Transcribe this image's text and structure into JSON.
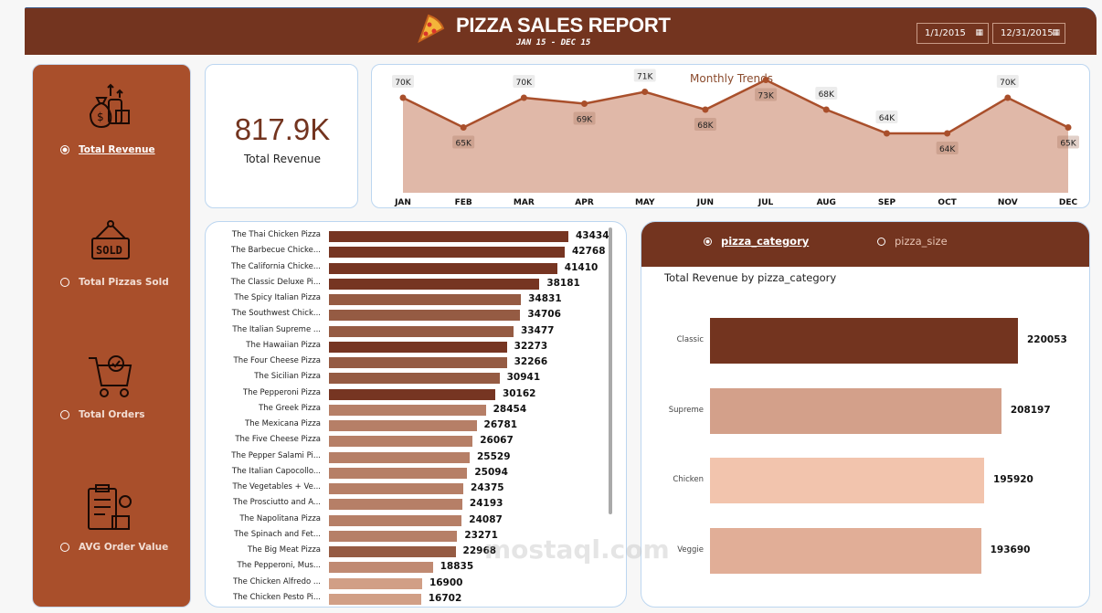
{
  "header": {
    "title": "PIZZA SALES REPORT",
    "subtitle": "JAN 15 - DEC 15",
    "date_start": "1/1/2015",
    "date_end": "12/31/2015",
    "color": "#73341f"
  },
  "sidebar": {
    "items": [
      {
        "label": "Total Revenue",
        "icon": "money-bag-icon",
        "selected": true
      },
      {
        "label": "Total Pizzas Sold",
        "icon": "sold-sign-icon",
        "selected": false
      },
      {
        "label": "Total Orders",
        "icon": "shopping-cart-icon",
        "selected": false
      },
      {
        "label": "AVG Order Value",
        "icon": "clipboard-icon",
        "selected": false
      }
    ]
  },
  "kpi": {
    "value": "817.9K",
    "label": "Total Revenue"
  },
  "trend": {
    "title": "Monthly Trends"
  },
  "chart_data": [
    {
      "type": "area",
      "title": "Monthly Trends",
      "categories": [
        "JAN",
        "FEB",
        "MAR",
        "APR",
        "MAY",
        "JUN",
        "JUL",
        "AUG",
        "SEP",
        "OCT",
        "NOV",
        "DEC"
      ],
      "values": [
        70,
        65,
        70,
        69,
        71,
        68,
        73,
        68,
        64,
        64,
        70,
        65
      ],
      "labels": [
        "70K",
        "65K",
        "70K",
        "69K",
        "71K",
        "68K",
        "73K",
        "68K",
        "64K",
        "64K",
        "70K",
        "65K"
      ],
      "color": "#a94f2b",
      "fill": "#e0b8a8"
    },
    {
      "type": "bar",
      "orientation": "horizontal",
      "categories": [
        "The Thai Chicken Pizza",
        "The Barbecue Chicke...",
        "The California Chicke...",
        "The Classic Deluxe Pi...",
        "The Spicy Italian Pizza",
        "The Southwest Chick...",
        "The Italian Supreme ...",
        "The Hawaiian Pizza",
        "The Four Cheese Pizza",
        "The Sicilian Pizza",
        "The Pepperoni Pizza",
        "The Greek Pizza",
        "The Mexicana Pizza",
        "The Five Cheese Pizza",
        "The Pepper Salami Pi...",
        "The Italian Capocollo...",
        "The Vegetables + Ve...",
        "The Prosciutto and A...",
        "The Napolitana Pizza",
        "The Spinach and Fet...",
        "The Big Meat Pizza",
        "The Pepperoni, Mus...",
        "The Chicken Alfredo ...",
        "The Chicken Pesto Pi..."
      ],
      "values": [
        43434,
        42768,
        41410,
        38181,
        34831,
        34706,
        33477,
        32273,
        32266,
        30941,
        30162,
        28454,
        26781,
        26067,
        25529,
        25094,
        24375,
        24193,
        24087,
        23271,
        22968,
        18835,
        16900,
        16702
      ],
      "colors": [
        "#763522",
        "#763522",
        "#763522",
        "#763522",
        "#955b43",
        "#955b43",
        "#955b43",
        "#763522",
        "#955b43",
        "#955b43",
        "#763522",
        "#b67f67",
        "#b67f67",
        "#b67f67",
        "#b67f67",
        "#b67f67",
        "#b67f67",
        "#b67f67",
        "#b67f67",
        "#b67f67",
        "#955b43",
        "#c08a72",
        "#d19f86",
        "#d19f86"
      ]
    },
    {
      "type": "bar",
      "orientation": "horizontal",
      "title": "Total Revenue by pizza_category",
      "categories": [
        "Classic",
        "Supreme",
        "Chicken",
        "Veggie"
      ],
      "values": [
        220053,
        208197,
        195920,
        193690
      ],
      "colors": [
        "#73341f",
        "#d3a08a",
        "#f2c4ad",
        "#e1ae97"
      ]
    }
  ],
  "category_panel": {
    "tabs": [
      "pizza_category",
      "pizza_size"
    ],
    "selected": "pizza_category"
  },
  "watermark": "mostaql.com"
}
